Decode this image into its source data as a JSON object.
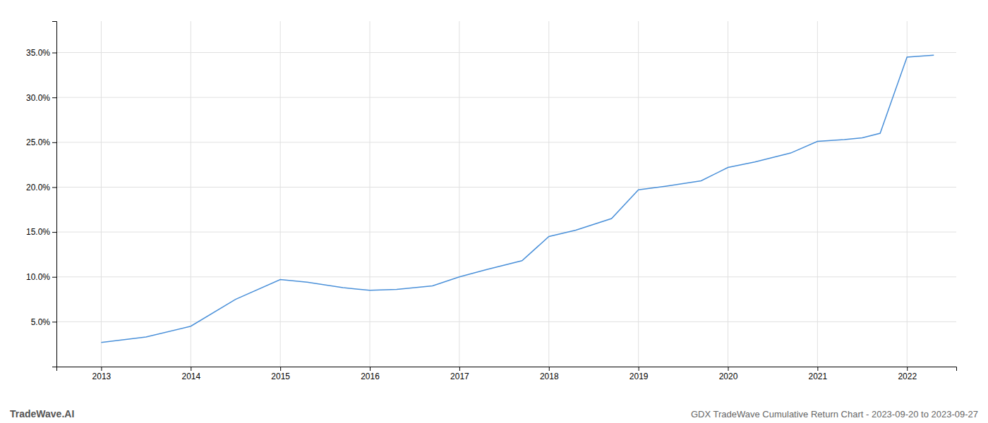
{
  "chart_data": {
    "type": "line",
    "title": "GDX TradeWave Cumulative Return Chart - 2023-09-20 to 2023-09-27",
    "annotations": [
      "TradeWave.AI"
    ],
    "x": [
      2013,
      2013.5,
      2014,
      2014.5,
      2015,
      2015.3,
      2015.7,
      2016,
      2016.3,
      2016.7,
      2017,
      2017.3,
      2017.7,
      2018,
      2018.3,
      2018.7,
      2019,
      2019.3,
      2019.7,
      2020,
      2020.3,
      2020.7,
      2021,
      2021.3,
      2021.5,
      2021.7,
      2022,
      2022.3
    ],
    "values": [
      0.027,
      0.033,
      0.045,
      0.075,
      0.097,
      0.094,
      0.088,
      0.085,
      0.086,
      0.09,
      0.1,
      0.108,
      0.118,
      0.145,
      0.152,
      0.165,
      0.197,
      0.201,
      0.207,
      0.222,
      0.228,
      0.238,
      0.251,
      0.253,
      0.255,
      0.26,
      0.345,
      0.347
    ],
    "color": "#4a90d9",
    "xlim": [
      2012.5,
      2022.55
    ],
    "xticks": [
      2013,
      2014,
      2015,
      2016,
      2017,
      2018,
      2019,
      2020,
      2021,
      2022
    ],
    "ylim": [
      0.0,
      0.385
    ],
    "yticks": [
      {
        "value": 0.05,
        "label": "5.0%"
      },
      {
        "value": 0.1,
        "label": "10.0%"
      },
      {
        "value": 0.15,
        "label": "15.0%"
      },
      {
        "value": 0.2,
        "label": "20.0%"
      },
      {
        "value": 0.25,
        "label": "25.0%"
      },
      {
        "value": 0.3,
        "label": "30.0%"
      },
      {
        "value": 0.35,
        "label": "35.0%"
      }
    ],
    "grid": true
  }
}
